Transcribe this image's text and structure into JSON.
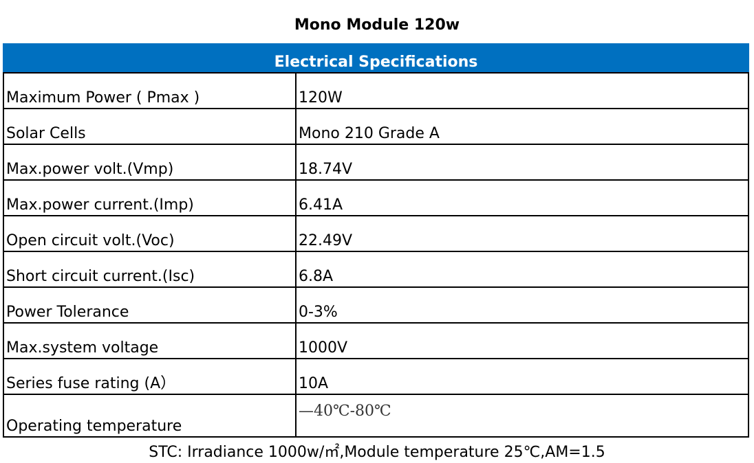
{
  "title": "Mono Module 120w",
  "table": {
    "header": "Electrical Specifications",
    "rows": [
      {
        "label": "Maximum Power ( Pmax )",
        "value": "120W"
      },
      {
        "label": "Solar Cells",
        "value": "Mono 210 Grade A"
      },
      {
        "label": "Max.power volt.(Vmp)",
        "value": "18.74V"
      },
      {
        "label": "Max.power current.(Imp)",
        "value": "6.41A"
      },
      {
        "label": "Open circuit volt.(Voc)",
        "value": "22.49V"
      },
      {
        "label": "Short circuit current.(Isc)",
        "value": "6.8A"
      },
      {
        "label": "Power Tolerance",
        "value": "0-3%"
      },
      {
        "label": "Max.system voltage",
        "value": "1000V"
      },
      {
        "label": "Series fuse rating (A）",
        "value": "10A"
      },
      {
        "label": "Operating temperature",
        "value": "—40℃-80℃"
      }
    ]
  },
  "footer": "STC: Irradiance 1000w/㎡,Module temperature 25℃,AM=1.5"
}
